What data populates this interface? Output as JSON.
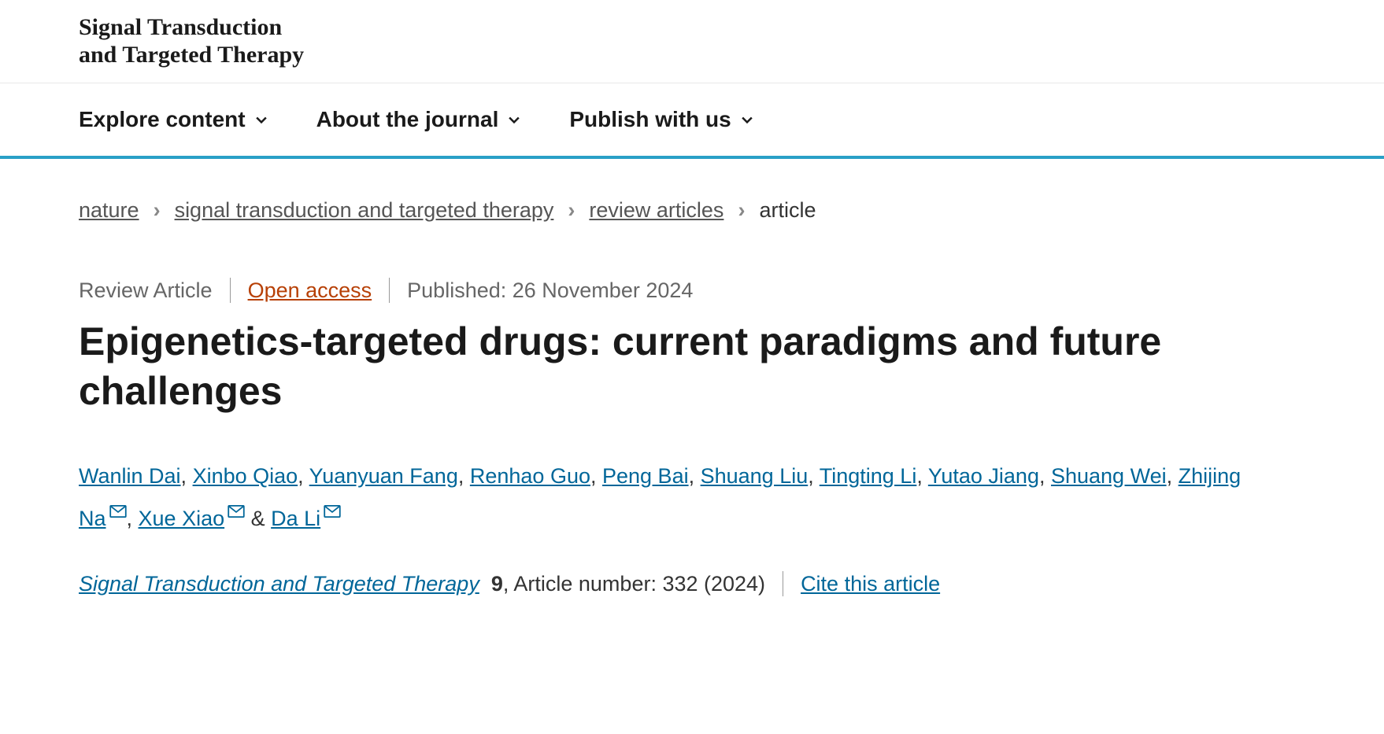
{
  "logo": {
    "line1": "Signal Transduction",
    "line2": "and Targeted Therapy"
  },
  "nav": {
    "items": [
      {
        "label": "Explore content"
      },
      {
        "label": "About the journal"
      },
      {
        "label": "Publish with us"
      }
    ]
  },
  "breadcrumb": {
    "items": [
      {
        "label": "nature",
        "link": true
      },
      {
        "label": "signal transduction and targeted therapy",
        "link": true
      },
      {
        "label": "review articles",
        "link": true
      },
      {
        "label": "article",
        "link": false
      }
    ]
  },
  "meta": {
    "article_type": "Review Article",
    "open_access": "Open access",
    "published_label": "Published: 26 November 2024"
  },
  "title": "Epigenetics-targeted drugs: current paradigms and future challenges",
  "authors": [
    {
      "name": "Wanlin Dai",
      "mail": false,
      "sep": ", "
    },
    {
      "name": "Xinbo Qiao",
      "mail": false,
      "sep": ", "
    },
    {
      "name": "Yuanyuan Fang",
      "mail": false,
      "sep": ", "
    },
    {
      "name": "Renhao Guo",
      "mail": false,
      "sep": ", "
    },
    {
      "name": "Peng Bai",
      "mail": false,
      "sep": ", "
    },
    {
      "name": "Shuang Liu",
      "mail": false,
      "sep": ", "
    },
    {
      "name": "Tingting Li",
      "mail": false,
      "sep": ", "
    },
    {
      "name": "Yutao Jiang",
      "mail": false,
      "sep": ", "
    },
    {
      "name": "Shuang Wei",
      "mail": false,
      "sep": ", "
    },
    {
      "name": "Zhijing Na",
      "mail": true,
      "sep": ", "
    },
    {
      "name": "Xue Xiao",
      "mail": true,
      "sep": " & "
    },
    {
      "name": "Da Li",
      "mail": true,
      "sep": ""
    }
  ],
  "citation": {
    "journal": "Signal Transduction and Targeted Therapy",
    "volume": "9",
    "article_number_label": ", Article number: 332 (2024)",
    "cite_label": "Cite this article"
  },
  "styles": {
    "accent_color": "#29a0c7",
    "link_color": "#006699",
    "open_access_color": "#b74006",
    "text_color": "#1a1a1a",
    "muted_color": "#666666"
  }
}
